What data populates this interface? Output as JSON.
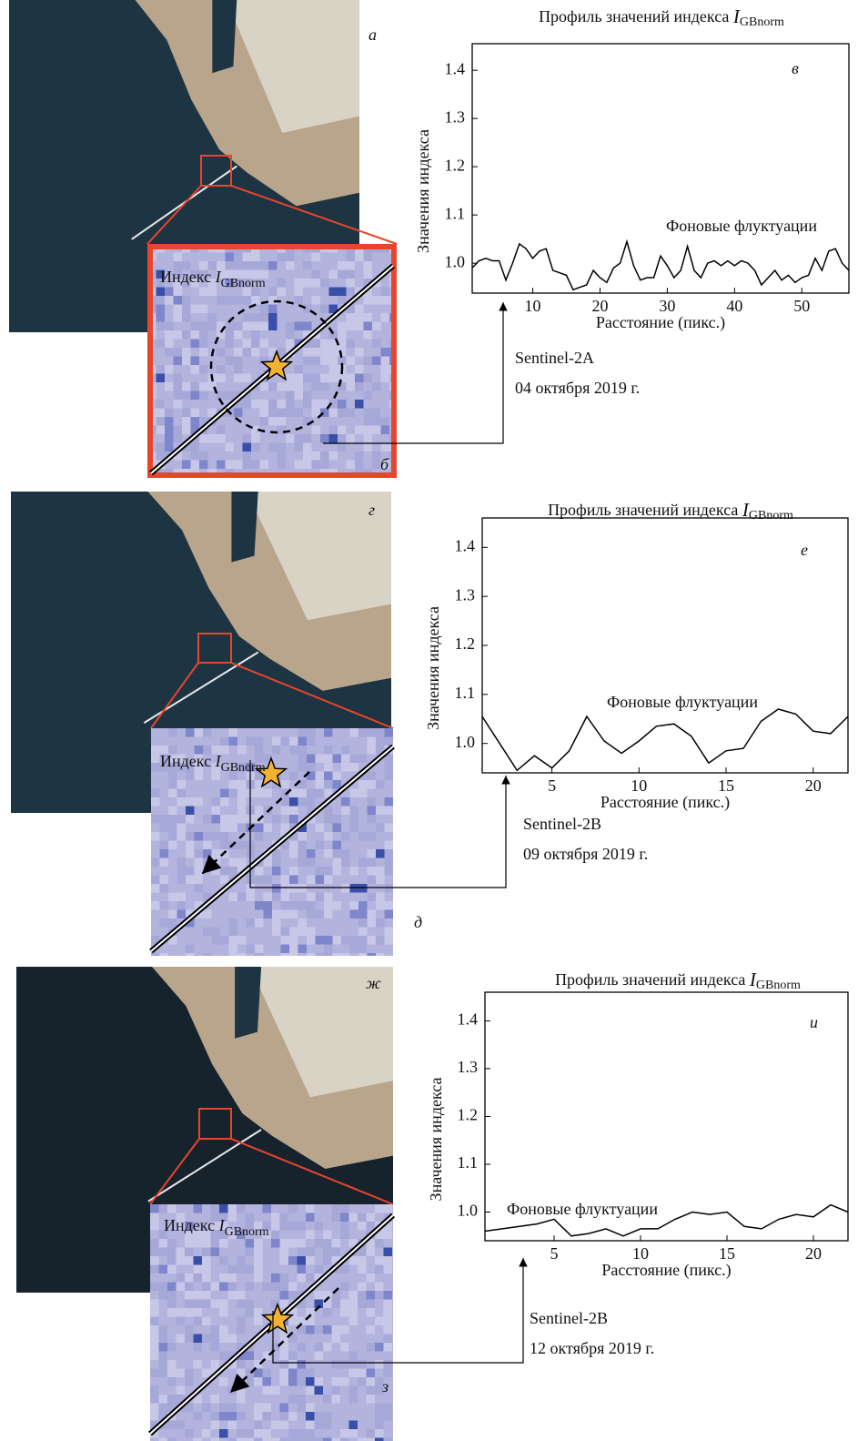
{
  "chart_data": [
    {
      "type": "line",
      "title": "Профиль значений индекса",
      "title_symbol": "I",
      "title_subscript": "GBnorm",
      "x_label": "Расстояние (пикс.)",
      "y_label": "Значения индекса",
      "panel_letter": "в",
      "annotation": "Фоновые флуктуации",
      "image_letter": "а",
      "inset_letter": "б",
      "inset_label": "Индекс",
      "inset_symbol": "I",
      "inset_subscript": "GBnorm",
      "satellite": "Sentinel-2A",
      "date": "04 октября 2019 г.",
      "color": "#000000",
      "x": [
        1,
        2,
        3,
        4,
        5,
        6,
        7,
        8,
        9,
        10,
        11,
        12,
        13,
        14,
        15,
        16,
        17,
        18,
        19,
        20,
        21,
        22,
        23,
        24,
        25,
        26,
        27,
        28,
        29,
        30,
        31,
        32,
        33,
        34,
        35,
        36,
        37,
        38,
        39,
        40,
        41,
        42,
        43,
        44,
        45,
        46,
        47,
        48,
        49,
        50,
        51,
        52,
        53,
        54,
        55,
        56,
        57
      ],
      "values": [
        0.99,
        1.005,
        1.01,
        1.005,
        1.005,
        0.965,
        1.0,
        1.04,
        1.03,
        1.01,
        1.025,
        1.03,
        0.985,
        0.98,
        0.975,
        0.945,
        0.95,
        0.955,
        0.985,
        0.97,
        0.96,
        0.99,
        1.0,
        1.045,
        0.995,
        0.965,
        0.97,
        0.97,
        1.015,
        0.995,
        0.97,
        0.985,
        1.035,
        0.985,
        0.97,
        1.0,
        1.005,
        0.995,
        1.005,
        0.995,
        1.005,
        1.0,
        0.985,
        0.955,
        0.97,
        0.985,
        0.965,
        0.975,
        0.96,
        0.97,
        0.975,
        1.01,
        0.985,
        1.025,
        1.03,
        1.0,
        0.985
      ],
      "xlim": [
        1,
        57
      ],
      "ylim": [
        0.938,
        1.455
      ],
      "xticks": [
        10,
        20,
        30,
        40,
        50
      ],
      "yticks": [
        {
          "value": 1,
          "label": "1.0"
        },
        1.1,
        1.2,
        1.3,
        1.4
      ]
    },
    {
      "type": "line",
      "title": "Профиль значений индекса",
      "title_symbol": "I",
      "title_subscript": "GBnorm",
      "x_label": "Расстояние (пикс.)",
      "y_label": "Значения индекса",
      "panel_letter": "е",
      "annotation": "Фоновые флуктуации",
      "image_letter": "г",
      "inset_letter": "д",
      "inset_label": "Индекс",
      "inset_symbol": "I",
      "inset_subscript": "GBnorm",
      "satellite": "Sentinel-2B",
      "date": "09 октября 2019 г.",
      "color": "#000000",
      "x": [
        1,
        2,
        3,
        4,
        5,
        6,
        7,
        8,
        9,
        10,
        11,
        12,
        13,
        14,
        15,
        16,
        17,
        18,
        19,
        20,
        21,
        22
      ],
      "values": [
        1.055,
        1.0,
        0.945,
        0.975,
        0.95,
        0.985,
        1.055,
        1.005,
        0.98,
        1.005,
        1.035,
        1.04,
        1.015,
        0.96,
        0.985,
        0.99,
        1.045,
        1.07,
        1.06,
        1.025,
        1.02,
        1.055
      ],
      "xlim": [
        1,
        22
      ],
      "ylim": [
        0.94,
        1.46
      ],
      "xticks": [
        5,
        10,
        15,
        20
      ],
      "yticks": [
        {
          "value": 1,
          "label": "1.0"
        },
        1.1,
        1.2,
        1.3,
        1.4
      ]
    },
    {
      "type": "line",
      "title": "Профиль значений индекса",
      "title_symbol": "I",
      "title_subscript": "GBnorm",
      "x_label": "Расстояние (пикс.)",
      "y_label": "Значения индекса",
      "panel_letter": "и",
      "annotation": "Фоновые флуктуации",
      "image_letter": "ж",
      "inset_letter": "з",
      "inset_label": "Индекс",
      "inset_symbol": "I",
      "inset_subscript": "GBnorm",
      "satellite": "Sentinel-2B",
      "date": "12 октября 2019 г.",
      "color": "#000000",
      "x": [
        1,
        2,
        3,
        4,
        5,
        6,
        7,
        8,
        9,
        10,
        11,
        12,
        13,
        14,
        15,
        16,
        17,
        18,
        19,
        20,
        21,
        22
      ],
      "values": [
        0.96,
        0.965,
        0.97,
        0.975,
        0.985,
        0.95,
        0.955,
        0.965,
        0.95,
        0.965,
        0.965,
        0.985,
        1.0,
        0.995,
        1.0,
        0.97,
        0.965,
        0.985,
        0.995,
        0.99,
        1.015,
        1.0
      ],
      "xlim": [
        1,
        22
      ],
      "ylim": [
        0.94,
        1.46
      ],
      "xticks": [
        5,
        10,
        15,
        20
      ],
      "yticks": [
        {
          "value": 1,
          "label": "1.0"
        },
        1.1,
        1.2,
        1.3,
        1.4
      ]
    }
  ]
}
